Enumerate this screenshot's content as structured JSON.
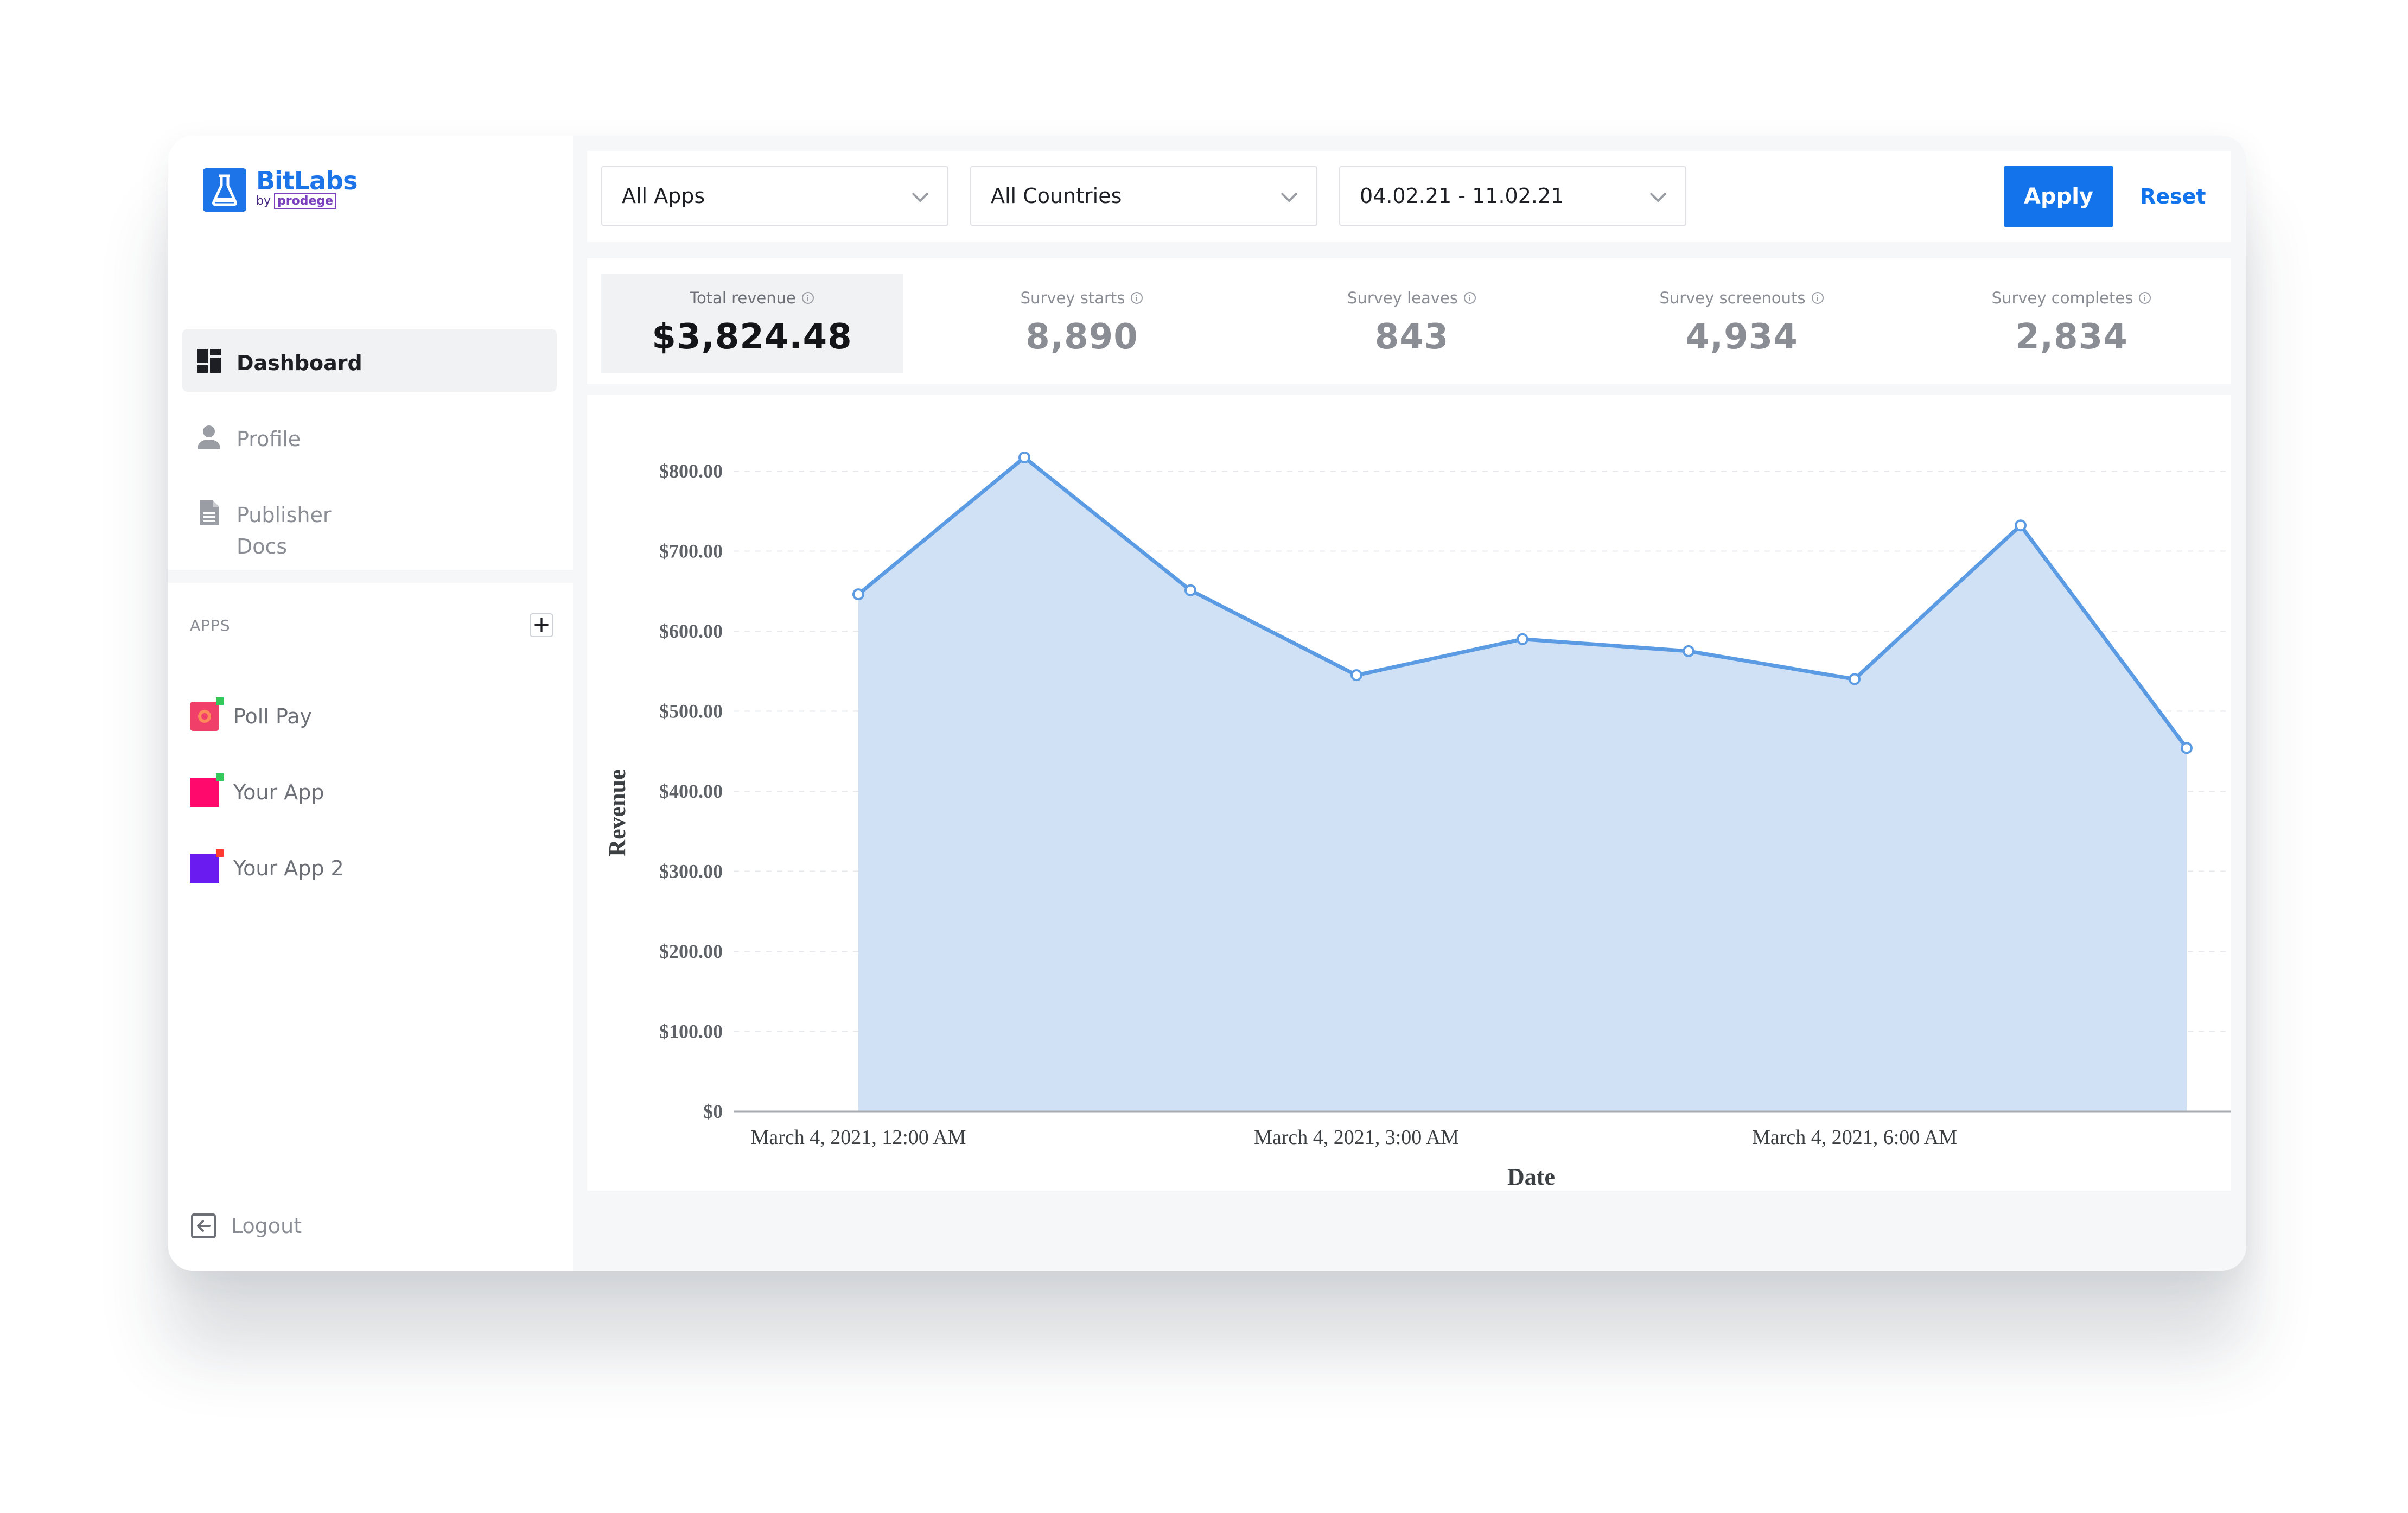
{
  "brand": {
    "name": "BitLabs",
    "by": "by",
    "by_brand": "prodege"
  },
  "sidebar": {
    "nav": [
      {
        "label": "Dashboard",
        "icon": "dashboard-icon",
        "active": true
      },
      {
        "label": "Profile",
        "icon": "user-icon",
        "active": false
      },
      {
        "label": "Publisher Docs",
        "icon": "document-icon",
        "active": false
      }
    ],
    "apps_title": "APPS",
    "apps_add": "+",
    "apps": [
      {
        "label": "Poll Pay",
        "color": "#f0406a",
        "dot": "#34c759"
      },
      {
        "label": "Your App",
        "color": "#ff0a6c",
        "dot": "#34c759"
      },
      {
        "label": "Your App 2",
        "color": "#6a1bf0",
        "dot": "#ff3b30"
      }
    ],
    "logout": "Logout"
  },
  "filters": {
    "app": "All Apps",
    "country": "All Countries",
    "date_range": "04.02.21 - 11.02.21",
    "apply": "Apply",
    "reset": "Reset"
  },
  "kpis": [
    {
      "label": "Total revenue",
      "value": "$3,824.48",
      "active": true
    },
    {
      "label": "Survey starts",
      "value": "8,890",
      "active": false
    },
    {
      "label": "Survey leaves",
      "value": "843",
      "active": false
    },
    {
      "label": "Survey screenouts",
      "value": "4,934",
      "active": false
    },
    {
      "label": "Survey completes",
      "value": "2,834",
      "active": false
    }
  ],
  "colors": {
    "accent": "#1273eb",
    "series_line": "#5b9be3",
    "series_fill": "#d0e1f5"
  },
  "chart_data": {
    "type": "area",
    "xlabel": "Date",
    "ylabel": "Revenue",
    "ylim": [
      0,
      800
    ],
    "y_ticks": [
      "$0",
      "$100.00",
      "$200.00",
      "$300.00",
      "$400.00",
      "$500.00",
      "$600.00",
      "$700.00",
      "$800.00"
    ],
    "x_tick_labels": [
      {
        "label": "March 4, 2021, 12:00 AM",
        "hour": 0
      },
      {
        "label": "March 4, 2021, 3:00 AM",
        "hour": 3
      },
      {
        "label": "March 4, 2021, 6:00 AM",
        "hour": 6
      }
    ],
    "x_hours": [
      0,
      1,
      2,
      3,
      4,
      5,
      6,
      7,
      8
    ],
    "values": [
      646,
      817,
      651,
      545,
      590,
      575,
      540,
      732,
      454
    ],
    "grid": true
  }
}
